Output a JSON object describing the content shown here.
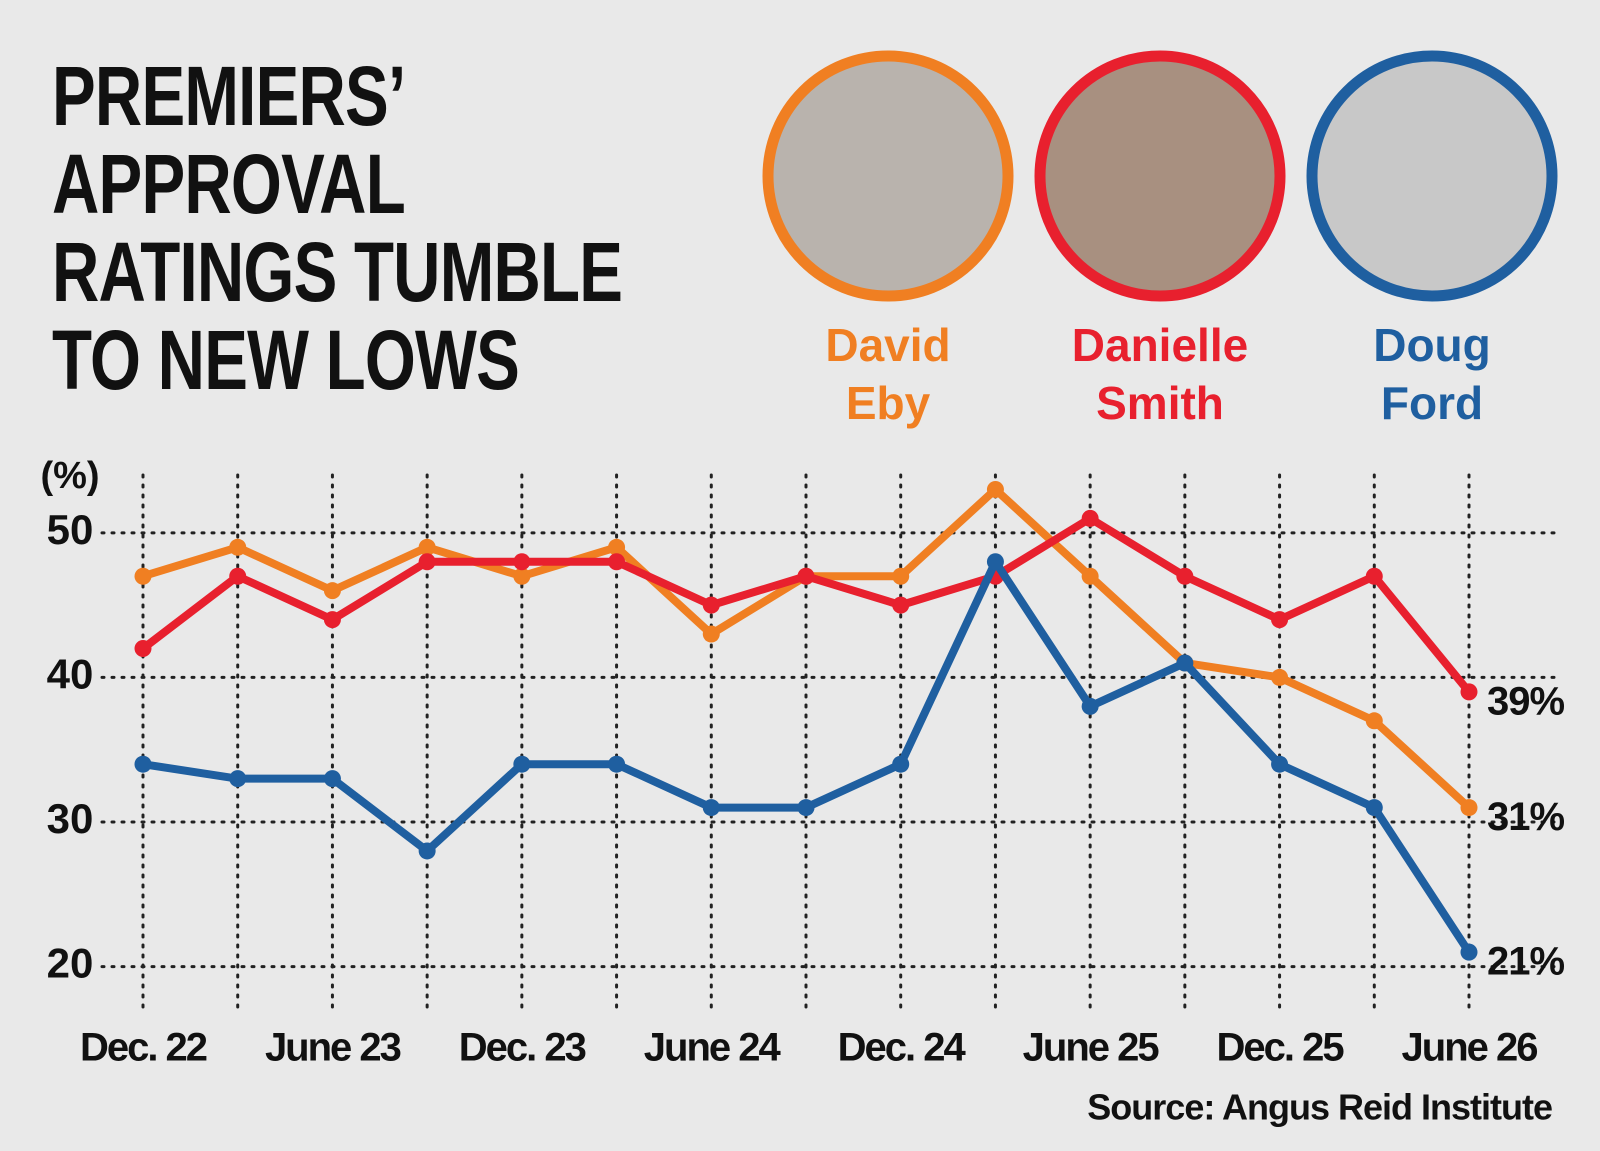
{
  "chart_data": {
    "type": "line",
    "title": "PREMIERS’ APPROVAL RATINGS TUMBLE TO NEW LOWS",
    "y_label": "(%)",
    "source": "Source: Angus Reid Institute",
    "categories": [
      "Dec. 22",
      null,
      "June 23",
      null,
      "Dec. 23",
      null,
      "June 24",
      null,
      "Dec. 24",
      null,
      "June 25",
      null,
      "Dec. 25",
      null,
      "June 26"
    ],
    "series": [
      {
        "name": "David Eby",
        "color": "#f07f22",
        "values": [
          47,
          49,
          46,
          49,
          47,
          49,
          43,
          47,
          47,
          53,
          47,
          41,
          40,
          37,
          31
        ],
        "value_labels": [
          null,
          null,
          null,
          null,
          null,
          null,
          null,
          null,
          null,
          null,
          null,
          null,
          null,
          null,
          "31%"
        ]
      },
      {
        "name": "Danielle Smith",
        "color": "#e8202e",
        "values": [
          42,
          47,
          44,
          48,
          48,
          48,
          45,
          47,
          45,
          47,
          51,
          47,
          44,
          47,
          39
        ],
        "value_labels": [
          null,
          null,
          null,
          null,
          null,
          null,
          null,
          null,
          null,
          null,
          null,
          null,
          null,
          null,
          "39%"
        ]
      },
      {
        "name": "Doug Ford",
        "color": "#1f5fa0",
        "values": [
          34,
          33,
          33,
          28,
          34,
          34,
          31,
          31,
          34,
          48,
          38,
          41,
          34,
          31,
          21
        ],
        "value_labels": [
          null,
          null,
          null,
          null,
          null,
          null,
          null,
          null,
          null,
          null,
          null,
          null,
          null,
          null,
          "21%"
        ]
      }
    ],
    "ylim": [
      17,
      54
    ],
    "yticks": [
      20,
      30,
      40,
      50
    ],
    "grid": true
  }
}
